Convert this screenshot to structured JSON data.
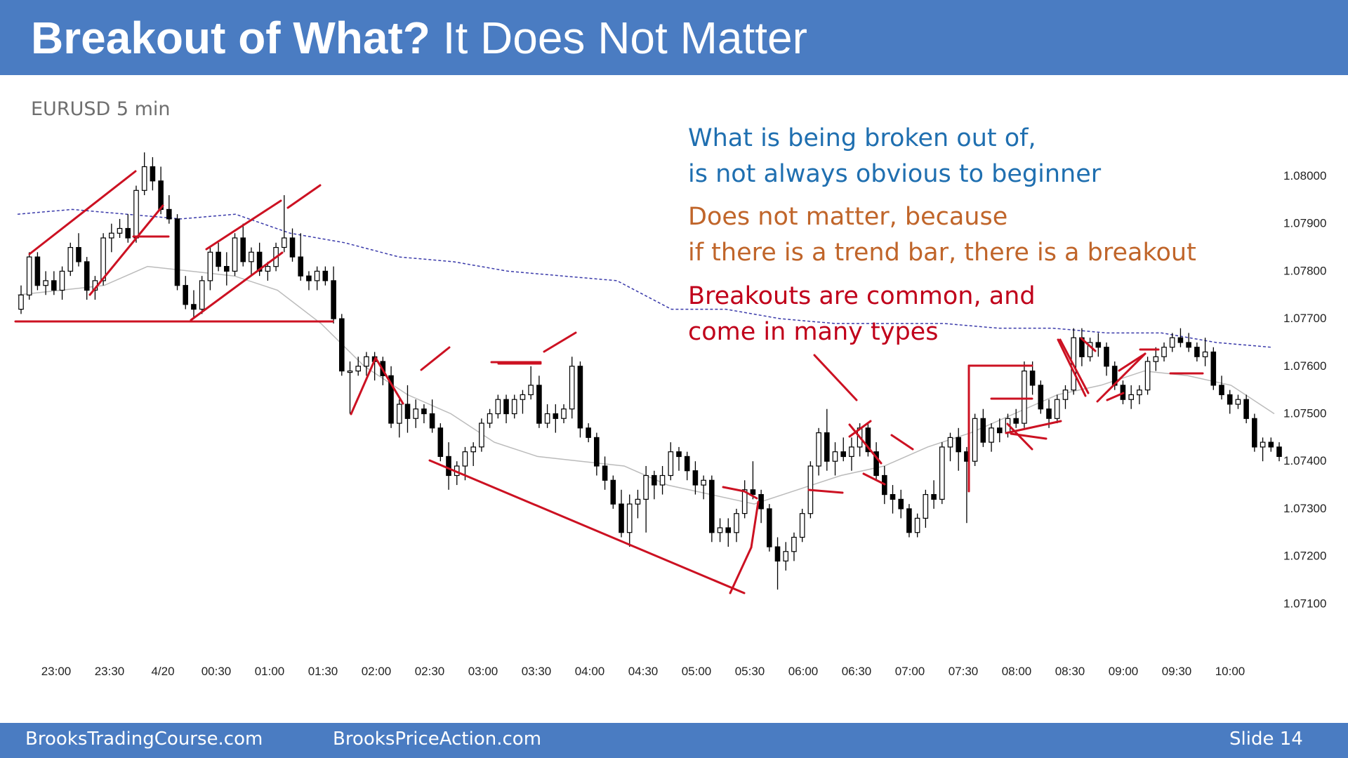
{
  "header": {
    "title_bold": "Breakout of What?",
    "title_regular": "It Does Not Matter"
  },
  "notes": {
    "blue": {
      "lines": [
        "What is being broken out of,",
        "is not always obvious to beginner"
      ],
      "color": "#1f6fb0"
    },
    "orange": {
      "lines": [
        "Does not matter, because",
        "if there is a trend bar, there is a breakout"
      ],
      "color": "#c0652a"
    },
    "red": {
      "lines": [
        "Breakouts are common, and",
        "come in many types"
      ],
      "color": "#c0001a"
    }
  },
  "footer": {
    "left_site": "BrooksTradingCourse.com",
    "middle_site": "BrooksPriceAction.com",
    "slide_label": "Slide  14",
    "bg_color": "#4a7cc2"
  },
  "chart_data": {
    "type": "candlestick",
    "subtitle": "EURUSD 5 min",
    "y_ticks": [
      "1.08000",
      "1.07900",
      "1.07800",
      "1.07700",
      "1.07600",
      "1.07500",
      "1.07400",
      "1.07300",
      "1.07200",
      "1.07100"
    ],
    "ylim": [
      1.0704,
      1.081
    ],
    "x_ticks": [
      "23:00",
      "23:30",
      "4/20",
      "00:30",
      "01:00",
      "01:30",
      "02:00",
      "02:30",
      "03:00",
      "03:30",
      "04:00",
      "04:30",
      "05:00",
      "05:30",
      "06:00",
      "06:30",
      "07:00",
      "07:30",
      "08:00",
      "08:30",
      "09:00",
      "09:30",
      "10:00"
    ],
    "grid": false,
    "colors": {
      "bull_bar": "#ffffff",
      "bear_bar": "#000000",
      "trend_lines": "#cc1122",
      "ema": "#bbbbbb",
      "upper_band": "#3a3aaa"
    },
    "bars": [
      [
        1.0772,
        1.0777,
        1.0771,
        1.0775
      ],
      [
        1.0775,
        1.0784,
        1.0774,
        1.0783
      ],
      [
        1.0783,
        1.0784,
        1.0776,
        1.0777
      ],
      [
        1.0777,
        1.078,
        1.0775,
        1.0778
      ],
      [
        1.0778,
        1.078,
        1.0775,
        1.0776
      ],
      [
        1.0776,
        1.0781,
        1.0774,
        1.078
      ],
      [
        1.078,
        1.0786,
        1.0779,
        1.0785
      ],
      [
        1.0785,
        1.0788,
        1.0781,
        1.0782
      ],
      [
        1.0782,
        1.0783,
        1.0774,
        1.0776
      ],
      [
        1.0776,
        1.0779,
        1.0774,
        1.0778
      ],
      [
        1.0778,
        1.0788,
        1.0777,
        1.0787
      ],
      [
        1.0787,
        1.079,
        1.0784,
        1.0788
      ],
      [
        1.0788,
        1.0791,
        1.0787,
        1.0789
      ],
      [
        1.0789,
        1.0792,
        1.0786,
        1.0787
      ],
      [
        1.0787,
        1.0798,
        1.0786,
        1.0797
      ],
      [
        1.0797,
        1.0805,
        1.0796,
        1.0802
      ],
      [
        1.0802,
        1.0804,
        1.0797,
        1.0799
      ],
      [
        1.0799,
        1.0802,
        1.0792,
        1.0793
      ],
      [
        1.0793,
        1.0796,
        1.079,
        1.0791
      ],
      [
        1.0791,
        1.0792,
        1.0776,
        1.0777
      ],
      [
        1.0777,
        1.0779,
        1.0772,
        1.0773
      ],
      [
        1.0773,
        1.0776,
        1.077,
        1.0772
      ],
      [
        1.0772,
        1.0779,
        1.0771,
        1.0778
      ],
      [
        1.0778,
        1.0785,
        1.0776,
        1.0784
      ],
      [
        1.0784,
        1.0786,
        1.078,
        1.0781
      ],
      [
        1.0781,
        1.0784,
        1.0777,
        1.078
      ],
      [
        1.078,
        1.0788,
        1.0779,
        1.0787
      ],
      [
        1.0787,
        1.079,
        1.0781,
        1.0782
      ],
      [
        1.0782,
        1.0785,
        1.0779,
        1.0784
      ],
      [
        1.0784,
        1.0786,
        1.0779,
        1.078
      ],
      [
        1.078,
        1.0782,
        1.0778,
        1.0781
      ],
      [
        1.0781,
        1.0786,
        1.078,
        1.0785
      ],
      [
        1.0785,
        1.0796,
        1.0784,
        1.0787
      ],
      [
        1.0787,
        1.0789,
        1.0782,
        1.0783
      ],
      [
        1.0783,
        1.0788,
        1.0778,
        1.0779
      ],
      [
        1.0779,
        1.078,
        1.0776,
        1.0778
      ],
      [
        1.0778,
        1.0781,
        1.0776,
        1.078
      ],
      [
        1.078,
        1.0781,
        1.0777,
        1.0778
      ],
      [
        1.0778,
        1.0781,
        1.0769,
        1.077
      ],
      [
        1.077,
        1.0771,
        1.0758,
        1.0759
      ],
      [
        1.0759,
        1.0761,
        1.075,
        1.0759
      ],
      [
        1.0759,
        1.0762,
        1.0758,
        1.076
      ],
      [
        1.076,
        1.0763,
        1.0758,
        1.0762
      ],
      [
        1.0762,
        1.0763,
        1.0757,
        1.0761
      ],
      [
        1.0761,
        1.0762,
        1.0756,
        1.0758
      ],
      [
        1.0758,
        1.076,
        1.0747,
        1.0748
      ],
      [
        1.0748,
        1.0753,
        1.0745,
        1.0752
      ],
      [
        1.0752,
        1.0756,
        1.0746,
        1.0749
      ],
      [
        1.0749,
        1.0753,
        1.0747,
        1.0751
      ],
      [
        1.0751,
        1.0752,
        1.0748,
        1.075
      ],
      [
        1.075,
        1.0753,
        1.0746,
        1.0747
      ],
      [
        1.0747,
        1.0748,
        1.074,
        1.0741
      ],
      [
        1.0741,
        1.0744,
        1.0734,
        1.0737
      ],
      [
        1.0737,
        1.074,
        1.0735,
        1.0739
      ],
      [
        1.0739,
        1.0743,
        1.0736,
        1.0742
      ],
      [
        1.0742,
        1.0744,
        1.0739,
        1.0743
      ],
      [
        1.0743,
        1.0749,
        1.0742,
        1.0748
      ],
      [
        1.0748,
        1.0751,
        1.0747,
        1.075
      ],
      [
        1.075,
        1.0754,
        1.0749,
        1.0753
      ],
      [
        1.0753,
        1.0754,
        1.0748,
        1.075
      ],
      [
        1.075,
        1.0754,
        1.0749,
        1.0753
      ],
      [
        1.0753,
        1.0755,
        1.075,
        1.0754
      ],
      [
        1.0754,
        1.076,
        1.0753,
        1.0756
      ],
      [
        1.0756,
        1.0758,
        1.0747,
        1.0748
      ],
      [
        1.0748,
        1.0752,
        1.0747,
        1.075
      ],
      [
        1.075,
        1.0752,
        1.0746,
        1.0749
      ],
      [
        1.0749,
        1.0752,
        1.0748,
        1.0751
      ],
      [
        1.0751,
        1.0762,
        1.0749,
        1.076
      ],
      [
        1.076,
        1.0761,
        1.0745,
        1.0747
      ],
      [
        1.0747,
        1.0748,
        1.0744,
        1.0745
      ],
      [
        1.0745,
        1.0746,
        1.0737,
        1.0739
      ],
      [
        1.0739,
        1.0741,
        1.0734,
        1.0736
      ],
      [
        1.0736,
        1.0737,
        1.073,
        1.0731
      ],
      [
        1.0731,
        1.0734,
        1.0724,
        1.0725
      ],
      [
        1.0725,
        1.0733,
        1.0722,
        1.0731
      ],
      [
        1.0731,
        1.0734,
        1.0728,
        1.0732
      ],
      [
        1.0732,
        1.0739,
        1.0725,
        1.0737
      ],
      [
        1.0737,
        1.0738,
        1.0732,
        1.0735
      ],
      [
        1.0735,
        1.0739,
        1.0733,
        1.0737
      ],
      [
        1.0737,
        1.0744,
        1.0736,
        1.0742
      ],
      [
        1.0742,
        1.0743,
        1.0738,
        1.0741
      ],
      [
        1.0741,
        1.0742,
        1.0736,
        1.0738
      ],
      [
        1.0738,
        1.074,
        1.0733,
        1.0735
      ],
      [
        1.0735,
        1.0737,
        1.0732,
        1.0736
      ],
      [
        1.0736,
        1.0737,
        1.0723,
        1.0725
      ],
      [
        1.0725,
        1.0728,
        1.0723,
        1.0726
      ],
      [
        1.0726,
        1.0728,
        1.0722,
        1.0725
      ],
      [
        1.0725,
        1.073,
        1.0723,
        1.0729
      ],
      [
        1.0729,
        1.0736,
        1.0728,
        1.0734
      ],
      [
        1.0734,
        1.074,
        1.0732,
        1.0733
      ],
      [
        1.0733,
        1.0734,
        1.0727,
        1.073
      ],
      [
        1.073,
        1.0731,
        1.0721,
        1.0722
      ],
      [
        1.0722,
        1.0724,
        1.0713,
        1.0719
      ],
      [
        1.0719,
        1.0723,
        1.0717,
        1.0721
      ],
      [
        1.0721,
        1.0725,
        1.0719,
        1.0724
      ],
      [
        1.0724,
        1.073,
        1.0723,
        1.0729
      ],
      [
        1.0729,
        1.074,
        1.0728,
        1.0739
      ],
      [
        1.0739,
        1.0747,
        1.0737,
        1.0746
      ],
      [
        1.0746,
        1.0751,
        1.0738,
        1.074
      ],
      [
        1.074,
        1.0744,
        1.0737,
        1.0742
      ],
      [
        1.0742,
        1.0745,
        1.074,
        1.0741
      ],
      [
        1.0741,
        1.0745,
        1.0738,
        1.0743
      ],
      [
        1.0743,
        1.0748,
        1.0741,
        1.0747
      ],
      [
        1.0747,
        1.0748,
        1.0741,
        1.0742
      ],
      [
        1.0742,
        1.0744,
        1.0736,
        1.0737
      ],
      [
        1.0737,
        1.0739,
        1.0731,
        1.0733
      ],
      [
        1.0733,
        1.0735,
        1.0729,
        1.0732
      ],
      [
        1.0732,
        1.0734,
        1.0728,
        1.073
      ],
      [
        1.073,
        1.0731,
        1.0724,
        1.0725
      ],
      [
        1.0725,
        1.0729,
        1.0724,
        1.0728
      ],
      [
        1.0728,
        1.0734,
        1.0726,
        1.0733
      ],
      [
        1.0733,
        1.0736,
        1.073,
        1.0732
      ],
      [
        1.0732,
        1.0744,
        1.0731,
        1.0743
      ],
      [
        1.0743,
        1.0746,
        1.074,
        1.0745
      ],
      [
        1.0745,
        1.0747,
        1.0738,
        1.0742
      ],
      [
        1.0742,
        1.0743,
        1.0727,
        1.074
      ],
      [
        1.074,
        1.075,
        1.0739,
        1.0749
      ],
      [
        1.0749,
        1.0751,
        1.0743,
        1.0744
      ],
      [
        1.0744,
        1.0748,
        1.0742,
        1.0747
      ],
      [
        1.0747,
        1.0749,
        1.0744,
        1.0746
      ],
      [
        1.0746,
        1.075,
        1.0745,
        1.0749
      ],
      [
        1.0749,
        1.0751,
        1.0747,
        1.0748
      ],
      [
        1.0748,
        1.0761,
        1.0747,
        1.0759
      ],
      [
        1.0759,
        1.0761,
        1.0754,
        1.0756
      ],
      [
        1.0756,
        1.0757,
        1.075,
        1.0751
      ],
      [
        1.0751,
        1.0753,
        1.0747,
        1.0749
      ],
      [
        1.0749,
        1.0754,
        1.0748,
        1.0753
      ],
      [
        1.0753,
        1.0756,
        1.0751,
        1.0755
      ],
      [
        1.0755,
        1.0768,
        1.0754,
        1.0766
      ],
      [
        1.0766,
        1.0768,
        1.076,
        1.0762
      ],
      [
        1.0762,
        1.0766,
        1.0761,
        1.0765
      ],
      [
        1.0765,
        1.0767,
        1.0762,
        1.0764
      ],
      [
        1.0764,
        1.0765,
        1.0758,
        1.076
      ],
      [
        1.076,
        1.0761,
        1.0755,
        1.0756
      ],
      [
        1.0756,
        1.0757,
        1.0752,
        1.0753
      ],
      [
        1.0753,
        1.0756,
        1.0751,
        1.0754
      ],
      [
        1.0754,
        1.0756,
        1.0752,
        1.0755
      ],
      [
        1.0755,
        1.0762,
        1.0754,
        1.0761
      ],
      [
        1.0761,
        1.0764,
        1.0759,
        1.0762
      ],
      [
        1.0762,
        1.0765,
        1.0761,
        1.0764
      ],
      [
        1.0764,
        1.0767,
        1.0763,
        1.0766
      ],
      [
        1.0766,
        1.0768,
        1.0764,
        1.0765
      ],
      [
        1.0765,
        1.0767,
        1.0763,
        1.0764
      ],
      [
        1.0764,
        1.0765,
        1.0761,
        1.0762
      ],
      [
        1.0762,
        1.0766,
        1.076,
        1.0763
      ],
      [
        1.0763,
        1.0764,
        1.0755,
        1.0756
      ],
      [
        1.0756,
        1.0758,
        1.0753,
        1.0754
      ],
      [
        1.0754,
        1.0755,
        1.075,
        1.0752
      ],
      [
        1.0752,
        1.0754,
        1.0751,
        1.0753
      ],
      [
        1.0753,
        1.0754,
        1.0748,
        1.0749
      ],
      [
        1.0749,
        1.075,
        1.0742,
        1.0743
      ],
      [
        1.0743,
        1.0745,
        1.074,
        1.0744
      ],
      [
        1.0744,
        1.0745,
        1.0742,
        1.0743
      ],
      [
        1.0743,
        1.0744,
        1.074,
        1.0741
      ]
    ],
    "ema": [
      1.0775,
      1.0776,
      1.0777,
      1.0781,
      1.078,
      1.0779,
      1.0776,
      1.0769,
      1.076,
      1.0754,
      1.075,
      1.0744,
      1.0741,
      1.074,
      1.0739,
      1.0735,
      1.0733,
      1.0731,
      1.0734,
      1.0737,
      1.0739,
      1.0743,
      1.0746,
      1.075,
      1.0754,
      1.0756,
      1.0759,
      1.0758,
      1.0756,
      1.075
    ],
    "upper_band": [
      1.0792,
      1.0793,
      1.0792,
      1.0791,
      1.0792,
      1.0788,
      1.0786,
      1.0783,
      1.0782,
      1.078,
      1.0779,
      1.0778,
      1.0772,
      1.0772,
      1.077,
      1.0769,
      1.0769,
      1.0769,
      1.0768,
      1.0768,
      1.0767,
      1.0767,
      1.0765,
      1.0764
    ]
  }
}
